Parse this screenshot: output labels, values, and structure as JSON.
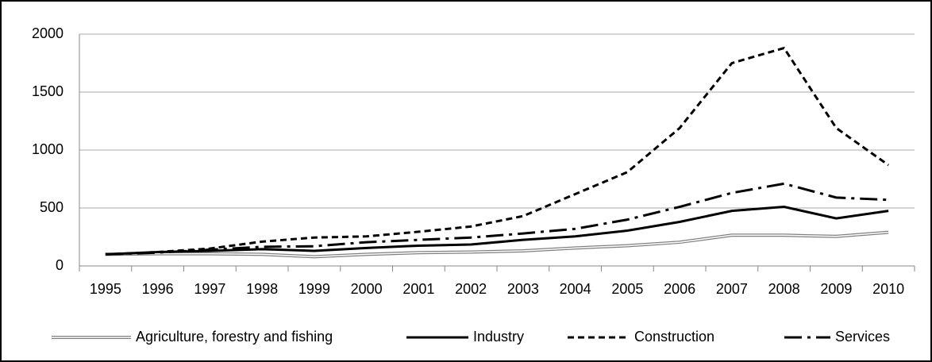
{
  "chart_data": {
    "type": "line",
    "categories": [
      "1995",
      "1996",
      "1997",
      "1998",
      "1999",
      "2000",
      "2001",
      "2002",
      "2003",
      "2004",
      "2005",
      "2006",
      "2007",
      "2008",
      "2009",
      "2010"
    ],
    "series": [
      {
        "name": "Agriculture, forestry and fishing",
        "color": "#808080",
        "style": "double",
        "values": [
          100,
          105,
          105,
          100,
          80,
          100,
          115,
          120,
          130,
          155,
          175,
          205,
          265,
          265,
          255,
          290
        ]
      },
      {
        "name": "Industry",
        "color": "#000000",
        "style": "solid",
        "values": [
          100,
          120,
          130,
          145,
          130,
          155,
          175,
          185,
          225,
          255,
          305,
          380,
          475,
          510,
          410,
          475
        ]
      },
      {
        "name": "Construction",
        "color": "#000000",
        "style": "dashed",
        "values": [
          100,
          120,
          150,
          210,
          245,
          255,
          295,
          340,
          430,
          620,
          810,
          1190,
          1750,
          1880,
          1190,
          870
        ]
      },
      {
        "name": "Services",
        "color": "#000000",
        "style": "dash-dot",
        "values": [
          100,
          115,
          140,
          165,
          170,
          205,
          225,
          245,
          280,
          320,
          400,
          510,
          630,
          710,
          590,
          570
        ]
      }
    ],
    "ylim": [
      0,
      2000
    ],
    "yticks": [
      0,
      500,
      1000,
      1500,
      2000
    ],
    "grid": true,
    "legend": "bottom"
  }
}
